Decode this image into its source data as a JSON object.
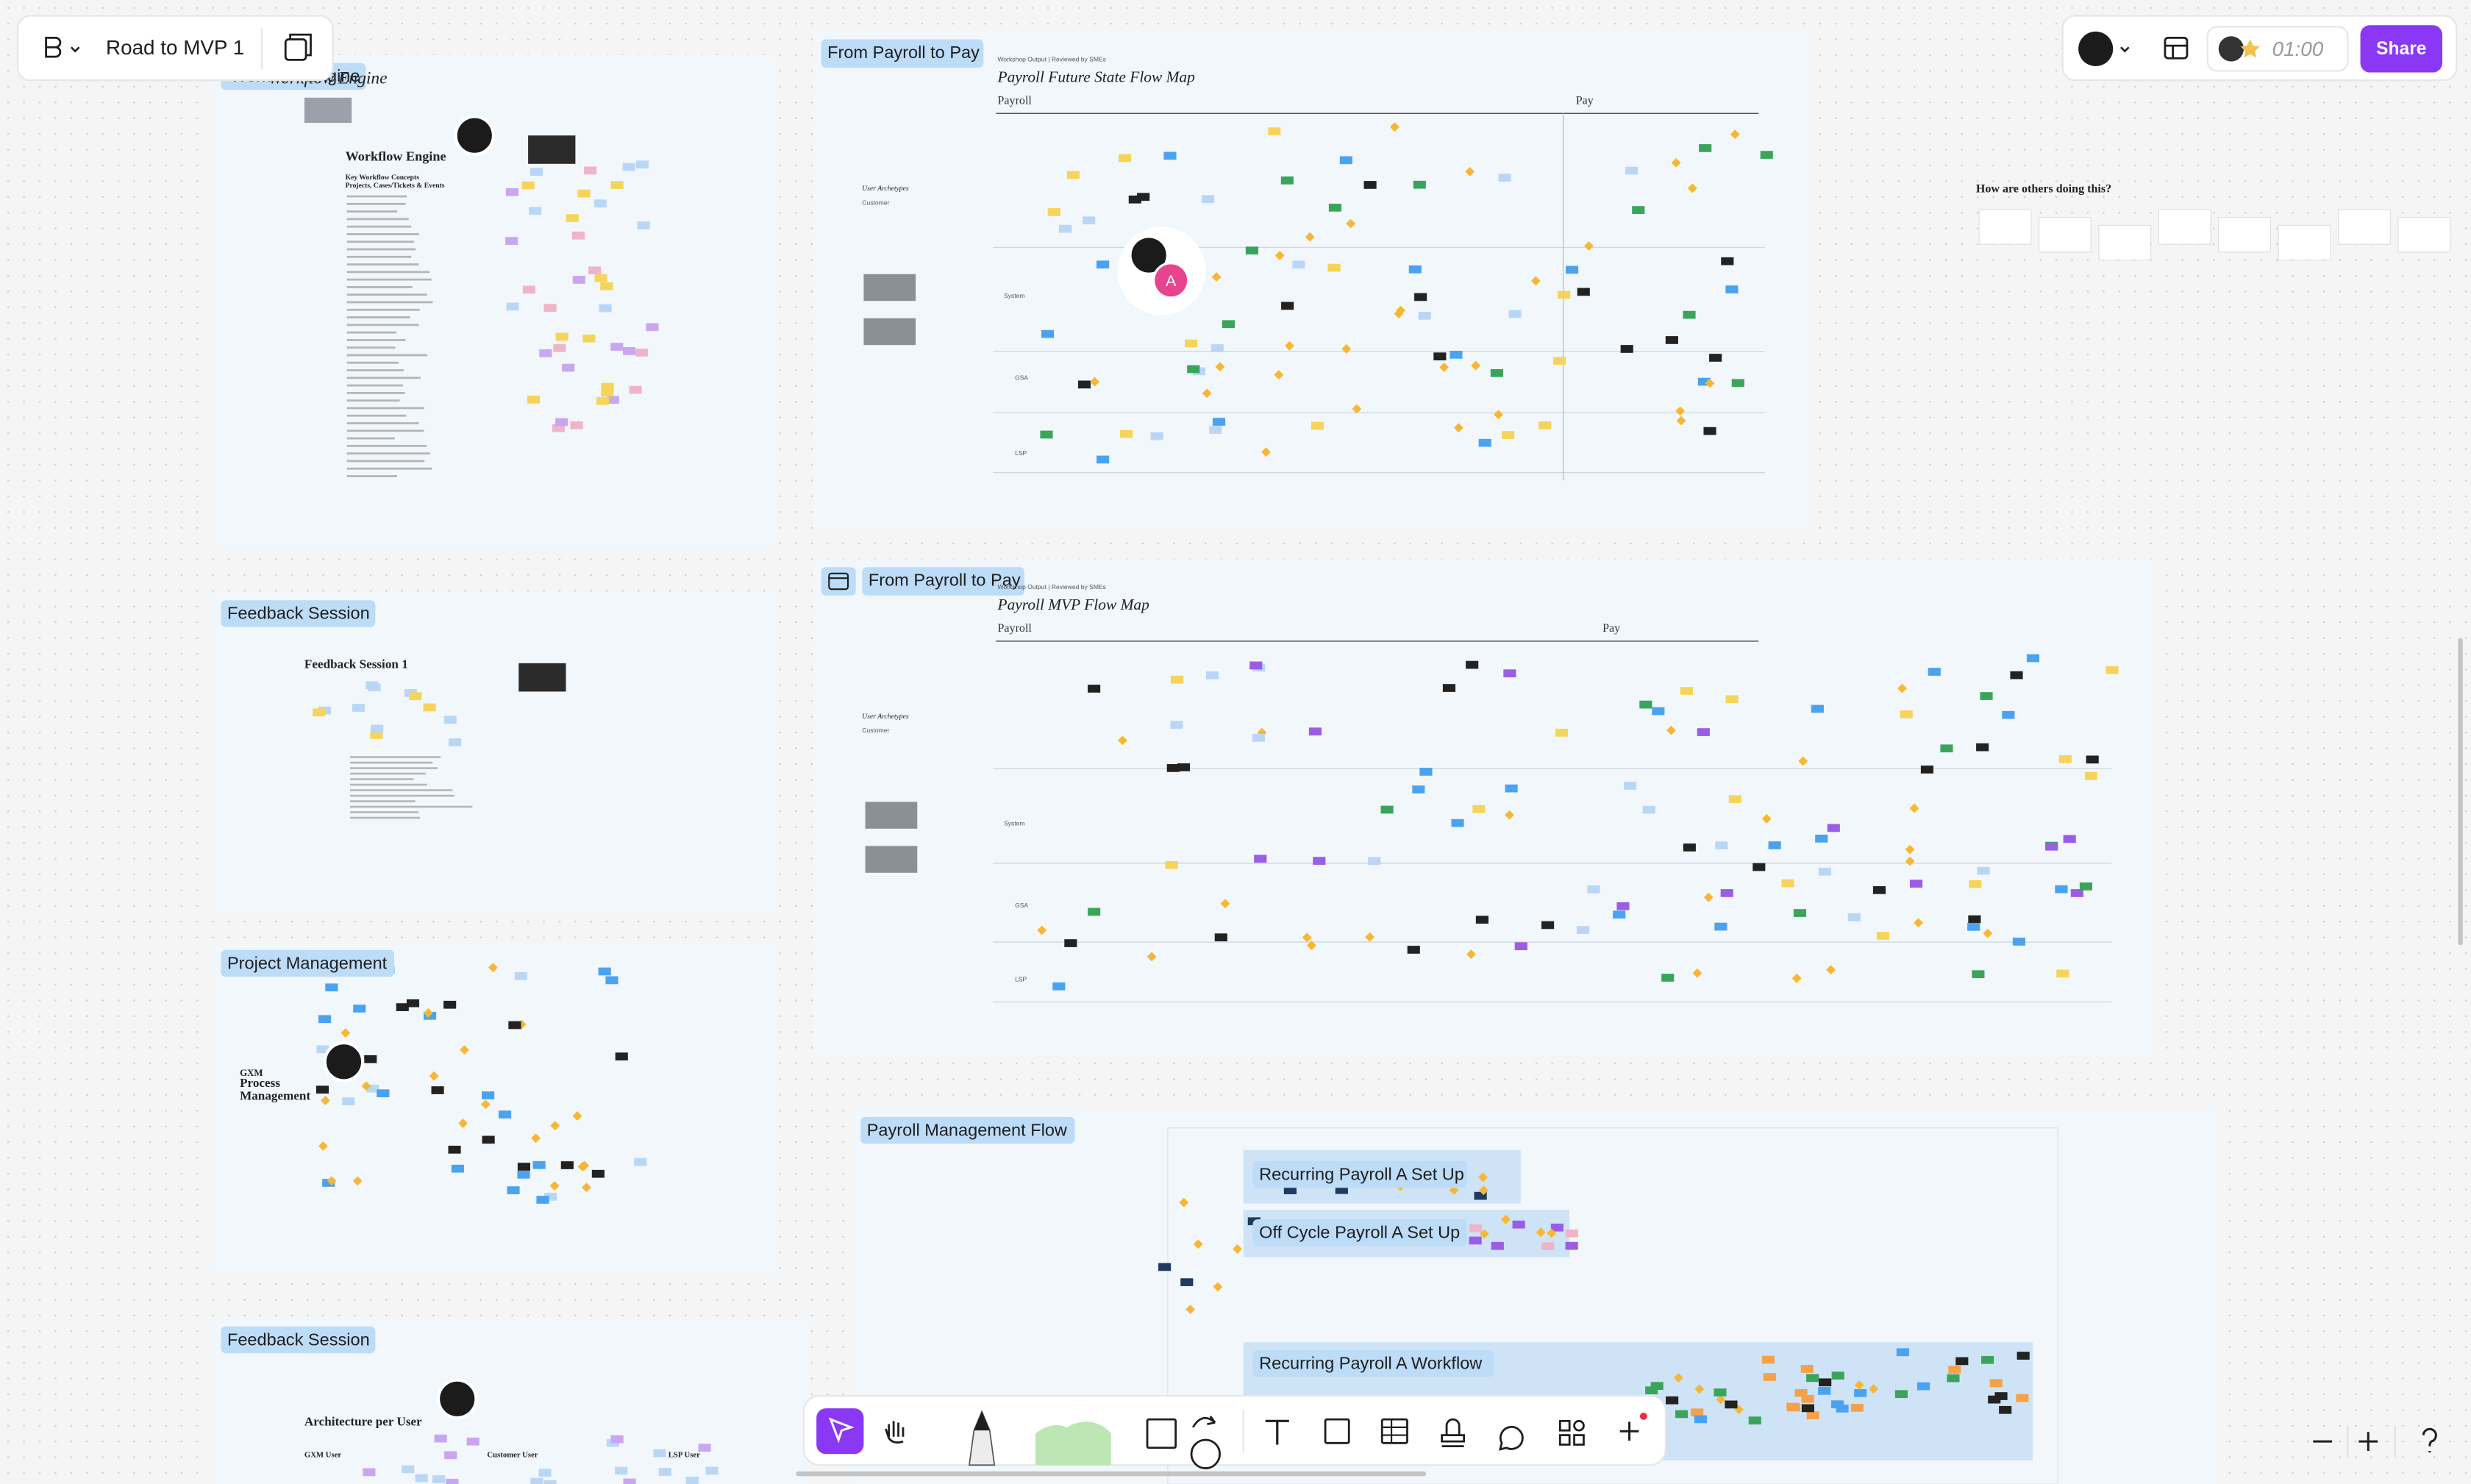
{
  "file": {
    "name": "Road to MVP 1"
  },
  "header": {
    "share": "Share",
    "timer": "01:00",
    "avatar_initial": "A"
  },
  "frames": [
    {
      "label": "Workflow Engine",
      "title": "Workflow Engine",
      "subtitle": "Key Workflow Concepts",
      "heading": "Projects, Cases/Tickets & Events"
    },
    {
      "label": "From Payroll to Pay",
      "caption": "Workshop Output | Reviewed by SMEs",
      "title": "Payroll Future State Flow Map",
      "phases": [
        "Payroll",
        "Pay"
      ],
      "lanes": [
        "User Archetypes",
        "Customer",
        "System",
        "GSA",
        "LSP"
      ]
    },
    {
      "label": "From Payroll to Pay",
      "caption": "Workshop Output | Reviewed by SMEs",
      "title": "Payroll MVP Flow Map",
      "phases": [
        "Payroll",
        "Pay"
      ],
      "lanes": [
        "User Archetypes",
        "Customer",
        "System",
        "GSA",
        "LSP"
      ]
    },
    {
      "label": "Feedback Session",
      "title": "Feedback Session 1"
    },
    {
      "label": "Project Management",
      "title_lines": [
        "GXM",
        "Process",
        "Management"
      ]
    },
    {
      "label": "Feedback Session",
      "title": "Architecture per User",
      "columns": [
        "GXM User",
        "Customer User",
        "LSP User"
      ]
    },
    {
      "label": "Payroll Management Flow",
      "sections": [
        "Recurring Payroll A Set Up",
        "Off Cycle Payroll A Set Up",
        "Recurring Payroll A Workflow"
      ]
    }
  ],
  "notes": {
    "others": "How are others doing this?"
  }
}
